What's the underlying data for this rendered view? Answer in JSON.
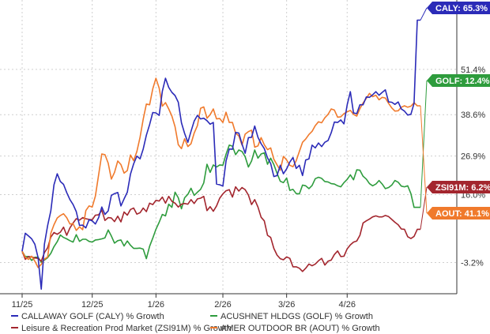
{
  "chart_data": {
    "type": "line",
    "title": "",
    "xlabel": "",
    "ylabel": "",
    "x_ticks": [
      "11/25",
      "12/25",
      "1/26",
      "2/26",
      "3/26",
      "4/26"
    ],
    "x_tick_index": [
      0,
      22,
      42,
      63,
      83,
      102
    ],
    "n_points": 126,
    "y_ticks": [
      "51.4%",
      "38.6%",
      "26.9%",
      "16.0%",
      "-3.2%"
    ],
    "y_tick_values": [
      51.4,
      38.6,
      26.9,
      16.0,
      -3.2
    ],
    "ylim": [
      -12,
      71
    ],
    "grid": true,
    "legend": "bottom",
    "series": [
      {
        "name": "CALLAWAY GOLF (CALY) % Growth",
        "color": "#2b2bb8",
        "end_label": "CALY: 65.3%",
        "values": [
          0.0,
          5.1,
          4.3,
          3.5,
          2.0,
          -1.8,
          -10.7,
          2.0,
          7.3,
          11.4,
          18.8,
          21.9,
          19.7,
          18.9,
          16.6,
          14.6,
          13.2,
          11.2,
          7.3,
          7.4,
          6.6,
          8.9,
          8.6,
          7.7,
          9.5,
          12.5,
          10.4,
          11.4,
          15.8,
          16.3,
          16.6,
          12.8,
          14.8,
          16.7,
          21.8,
          24.7,
          26.9,
          26.1,
          28.9,
          32.8,
          35.8,
          39.2,
          39.1,
          38.4,
          45.2,
          48.9,
          46.3,
          44.9,
          44.0,
          42.1,
          36.3,
          33.3,
          30.8,
          33.9,
          36.8,
          38.4,
          37.4,
          37.6,
          36.9,
          35.9,
          36.4,
          19.0,
          18.8,
          18.4,
          25.5,
          28.9,
          28.8,
          33.6,
          33.4,
          30.3,
          27.7,
          32.1,
          32.2,
          35.4,
          32.2,
          30.4,
          29.0,
          26.4,
          24.8,
          21.1,
          21.4,
          24.3,
          21.9,
          23.3,
          25.2,
          26.5,
          23.4,
          24.3,
          21.4,
          25.8,
          26.1,
          30.0,
          29.2,
          30.6,
          29.6,
          30.8,
          31.3,
          33.5,
          36.5,
          36.4,
          37.1,
          36.0,
          41.4,
          45.1,
          39.1,
          38.9,
          41.4,
          41.4,
          43.6,
          43.5,
          44.2,
          45.1,
          44.1,
          44.9,
          45.6,
          42.2,
          42.1,
          41.5,
          42.2,
          40.2,
          39.6,
          38.5,
          38.7,
          41.8,
          65.3,
          65.3
        ]
      },
      {
        "name": "ACUSHNET HLDGS (GOLF) % Growth",
        "color": "#2e9c3d",
        "end_label": "GOLF: 12.4%",
        "values": [
          0.0,
          -1.5,
          -1.5,
          -2.6,
          -1.7,
          -1.7,
          -3.1,
          -2.5,
          -1.8,
          -0.6,
          1.3,
          2.7,
          4.6,
          3.9,
          3.5,
          3.0,
          2.6,
          4.7,
          2.8,
          3.4,
          3.4,
          2.8,
          2.6,
          3.2,
          3.3,
          3.5,
          3.8,
          6.0,
          4.3,
          2.3,
          3.0,
          3.2,
          1.5,
          2.9,
          1.7,
          0.8,
          0.8,
          0.9,
          0.6,
          -2.1,
          1.4,
          3.7,
          6.2,
          8.2,
          10.4,
          10.0,
          13.3,
          12.4,
          16.7,
          15.1,
          12.0,
          15.1,
          16.1,
          17.8,
          15.8,
          16.7,
          17.5,
          19.3,
          24.6,
          22.3,
          24.4,
          23.8,
          24.4,
          24.3,
          27.4,
          30.0,
          29.7,
          27.3,
          28.6,
          28.2,
          26.7,
          23.8,
          25.5,
          28.6,
          26.3,
          27.5,
          27.8,
          24.6,
          26.3,
          24.5,
          22.0,
          19.8,
          19.4,
          20.7,
          17.2,
          17.5,
          16.3,
          16.2,
          18.7,
          18.5,
          17.7,
          18.6,
          20.5,
          20.9,
          20.6,
          19.7,
          19.6,
          19.1,
          19.0,
          18.5,
          18.2,
          19.4,
          20.3,
          21.6,
          20.2,
          23.0,
          22.9,
          21.2,
          20.4,
          19.1,
          18.5,
          19.0,
          20.0,
          19.0,
          17.7,
          18.0,
          18.7,
          20.0,
          19.5,
          18.4,
          18.2,
          18.5,
          16.3,
          12.4,
          12.4,
          12.4
        ]
      },
      {
        "name": "Leisure & Recreation Prod Market (ZSI91M) % Growth",
        "color": "#a3262e",
        "end_label": "ZSI91M: 6.2%",
        "values": [
          0.0,
          -2.3,
          -1.5,
          -1.6,
          -1.9,
          -2.0,
          -2.8,
          -0.4,
          1.0,
          4.0,
          5.3,
          4.8,
          5.4,
          6.8,
          4.5,
          6.6,
          8.0,
          9.2,
          8.8,
          9.5,
          9.2,
          9.0,
          8.9,
          10.2,
          10.3,
          11.6,
          8.7,
          9.5,
          9.4,
          8.4,
          9.9,
          8.3,
          11.1,
          10.2,
          11.8,
          12.2,
          10.5,
          10.9,
          12.2,
          11.2,
          13.6,
          13.2,
          14.4,
          14.2,
          15.3,
          13.6,
          15.5,
          14.1,
          13.6,
          12.5,
          13.3,
          13.5,
          13.3,
          14.6,
          13.5,
          14.8,
          15.0,
          15.5,
          11.5,
          12.6,
          11.3,
          12.8,
          15.0,
          16.2,
          17.1,
          17.4,
          15.3,
          18.2,
          17.0,
          18.0,
          17.4,
          15.9,
          13.2,
          14.6,
          12.5,
          9.6,
          8.6,
          4.5,
          3.9,
          0.8,
          -1.1,
          -2.1,
          -2.4,
          -1.6,
          -2.0,
          -4.4,
          -4.4,
          -4.8,
          -5.7,
          -4.8,
          -3.6,
          -4.1,
          -3.6,
          -2.7,
          -2.0,
          -3.9,
          -2.8,
          -2.5,
          -0.9,
          0.1,
          -1.5,
          -1.4,
          0.7,
          1.8,
          2.6,
          2.9,
          4.5,
          8.0,
          8.6,
          9.1,
          9.7,
          10.0,
          9.7,
          9.7,
          10.1,
          9.8,
          9.0,
          8.2,
          7.5,
          6.3,
          6.2,
          4.1,
          3.6,
          4.2,
          6.2,
          6.2
        ]
      },
      {
        "name": "AMER OUTDOOR BR (AOUT) % Growth",
        "color": "#f07a2c",
        "end_label": "AOUT: 41.1%",
        "values": [
          0.0,
          -1.7,
          -2.3,
          -1.4,
          -2.8,
          -4.6,
          -3.7,
          -2.2,
          -1.6,
          5.1,
          7.5,
          9.4,
          10.1,
          10.6,
          9.5,
          7.7,
          7.8,
          5.9,
          6.9,
          6.1,
          11.5,
          12.8,
          12.5,
          15.6,
          21.6,
          27.5,
          27.3,
          24.9,
          20.4,
          22.3,
          25.5,
          24.5,
          22.1,
          22.8,
          27.2,
          25.6,
          28.2,
          32.2,
          37.3,
          41.6,
          41.4,
          45.9,
          48.9,
          46.1,
          41.0,
          42.0,
          40.2,
          38.2,
          35.2,
          30.1,
          29.0,
          31.8,
          29.6,
          30.4,
          33.4,
          35.5,
          40.4,
          40.8,
          37.6,
          38.6,
          40.2,
          37.4,
          37.5,
          36.4,
          39.3,
          36.4,
          36.4,
          33.4,
          32.6,
          30.0,
          33.1,
          33.8,
          34.2,
          29.4,
          29.8,
          32.1,
          30.1,
          28.7,
          29.2,
          26.0,
          24.4,
          22.9,
          26.8,
          25.8,
          24.3,
          23.9,
          25.6,
          28.2,
          30.8,
          31.7,
          33.0,
          33.9,
          35.5,
          36.6,
          36.3,
          37.7,
          38.7,
          40.2,
          39.9,
          37.9,
          38.0,
          38.9,
          39.4,
          39.8,
          38.7,
          38.2,
          40.3,
          41.9,
          43.2,
          44.6,
          43.7,
          44.1,
          42.8,
          43.5,
          43.3,
          41.8,
          40.5,
          39.6,
          39.7,
          40.7,
          41.1,
          40.7,
          41.0,
          42.0,
          41.1,
          41.1
        ]
      }
    ]
  }
}
